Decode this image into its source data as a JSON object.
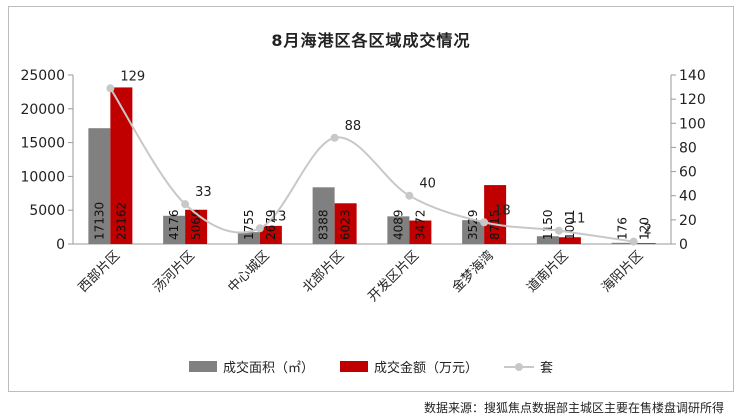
{
  "chart_data": {
    "type": "bar",
    "title": "8月海港区各区域成交情况",
    "categories": [
      "西部片区",
      "汤河片区",
      "中心城区",
      "北部片区",
      "开发区片区",
      "金梦海湾",
      "道南片区",
      "海阳片区"
    ],
    "series": [
      {
        "name": "成交面积（㎡）",
        "type": "bar",
        "axis": "left",
        "color": "#808080",
        "values": [
          17130,
          4176,
          1755,
          8388,
          4089,
          3529,
          1150,
          176
        ]
      },
      {
        "name": "成交金额（万元）",
        "type": "bar",
        "axis": "left",
        "color": "#c00000",
        "values": [
          23162,
          5066,
          2679,
          6023,
          3472,
          8715,
          1001,
          120
        ]
      },
      {
        "name": "套",
        "type": "line",
        "axis": "right",
        "color": "#c8c8c8",
        "values": [
          129,
          33,
          13,
          88,
          40,
          18,
          11,
          2
        ]
      }
    ],
    "y_left": {
      "min": 0,
      "max": 25000,
      "ticks": [
        0,
        5000,
        10000,
        15000,
        20000,
        25000
      ]
    },
    "y_right": {
      "min": 0,
      "max": 140,
      "ticks": [
        0,
        20,
        40,
        60,
        80,
        100,
        120,
        140
      ]
    },
    "grid": false,
    "legend_position": "bottom",
    "colors": {
      "area": "#808080",
      "amount": "#c00000",
      "units": "#c8c8c8"
    }
  },
  "source_note": "数据来源：搜狐焦点数据部主城区主要在售楼盘调研所得"
}
